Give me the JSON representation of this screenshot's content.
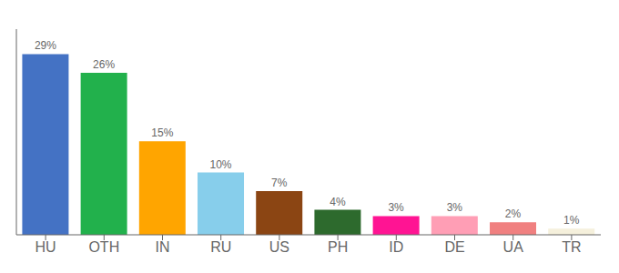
{
  "chart_data": {
    "type": "bar",
    "categories": [
      "HU",
      "OTH",
      "IN",
      "RU",
      "US",
      "PH",
      "ID",
      "DE",
      "UA",
      "TR"
    ],
    "values": [
      29,
      26,
      15,
      10,
      7,
      4,
      3,
      3,
      2,
      1
    ],
    "value_labels": [
      "29%",
      "26%",
      "15%",
      "10%",
      "7%",
      "4%",
      "3%",
      "3%",
      "2%",
      "1%"
    ],
    "data_labels": true,
    "colors": [
      "#4472c4",
      "#22b14c",
      "#ffa500",
      "#87ceeb",
      "#8b4513",
      "#2d6a2d",
      "#ff1493",
      "#ff9eb5",
      "#f08080",
      "#f5f0dc"
    ],
    "ylim": [
      0,
      33
    ],
    "grid": false,
    "tick_labels": "x"
  }
}
